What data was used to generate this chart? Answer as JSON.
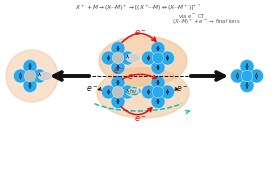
{
  "bg_color": "#ffffff",
  "blue": "#29aaee",
  "gray_light": "#c0c0c0",
  "gray_oval": "#d0d0d0",
  "salmon": "#f0c090",
  "teal": "#00bbbb",
  "red": "#dd1111",
  "black": "#111111",
  "eq_color": "#444444",
  "sub_color": "#555555"
}
